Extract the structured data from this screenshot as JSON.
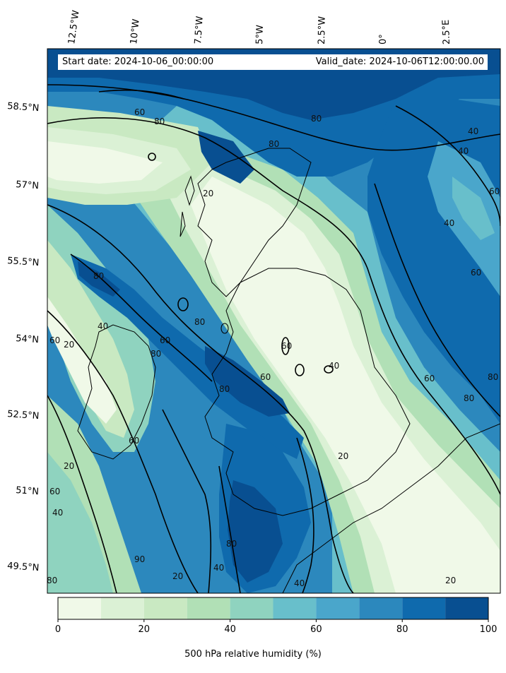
{
  "header": {
    "start_date": "Start date: 2024-10-06_00:00:00",
    "valid_date": "Valid_date: 2024-10-06T12:00:00.00"
  },
  "longitude_labels": [
    "12.5°W",
    "10°W",
    "7.5°W",
    "5°W",
    "2.5°W",
    "0°",
    "2.5°E"
  ],
  "latitude_labels": [
    "58.5°N",
    "57°N",
    "55.5°N",
    "54°N",
    "52.5°N",
    "51°N",
    "49.5°N"
  ],
  "colorbar": {
    "title": "500 hPa relative humidity (%)",
    "tick_labels": [
      "0",
      "20",
      "40",
      "60",
      "80",
      "100"
    ],
    "levels": [
      0,
      10,
      20,
      30,
      40,
      50,
      60,
      70,
      80,
      90,
      100
    ],
    "colors": [
      "#f0f9e8",
      "#dbf1d5",
      "#c9e9c2",
      "#b1e0b6",
      "#8fd3bf",
      "#68bfcb",
      "#4aa6cb",
      "#2c88bd",
      "#0f6aad",
      "#084f91"
    ]
  },
  "contour_labels": [
    "60",
    "80",
    "80",
    "80",
    "40",
    "40",
    "60",
    "40",
    "60",
    "80",
    "20",
    "80",
    "40",
    "60",
    "20",
    "60",
    "60",
    "80",
    "80",
    "60",
    "60",
    "40",
    "80",
    "80",
    "20",
    "20",
    "60",
    "40",
    "80",
    "40",
    "90",
    "20",
    "40",
    "20",
    "60",
    "80"
  ],
  "style": {
    "contour_color": "#000000",
    "coast_color": "#000000"
  }
}
